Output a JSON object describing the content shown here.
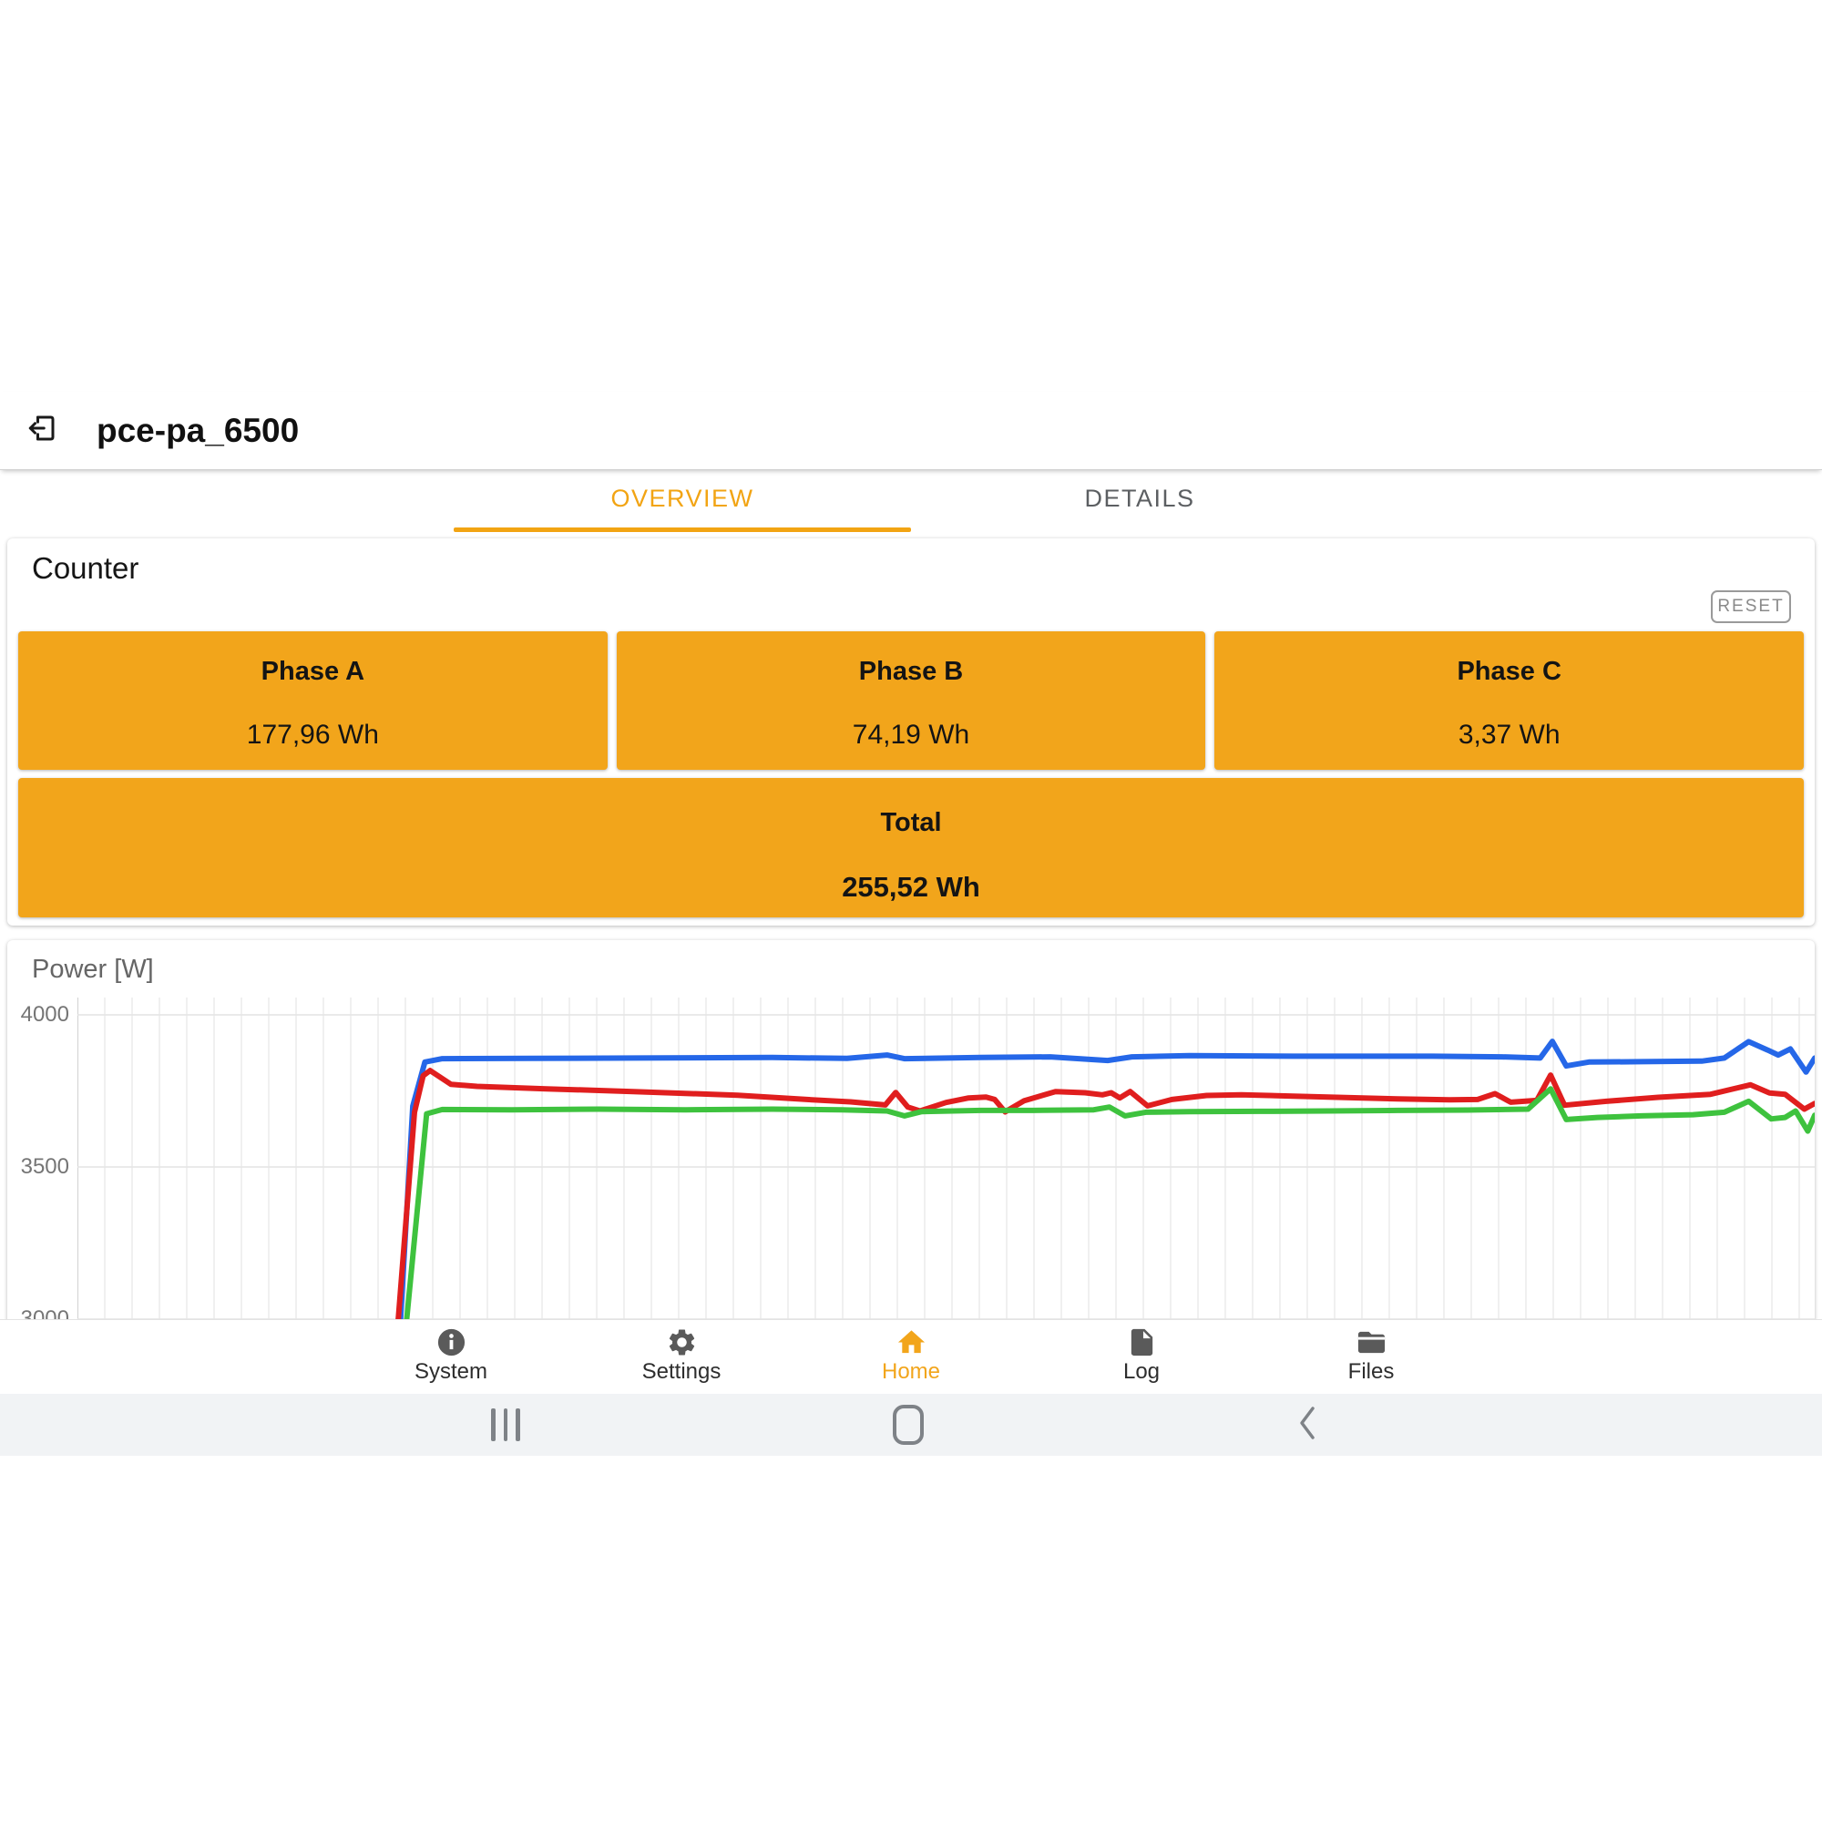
{
  "header": {
    "title": "pce-pa_6500"
  },
  "tabs": {
    "overview": "OVERVIEW",
    "details": "DETAILS"
  },
  "counter": {
    "title": "Counter",
    "reset_label": "RESET",
    "phases": [
      {
        "label": "Phase A",
        "value": "177,96 Wh"
      },
      {
        "label": "Phase B",
        "value": "74,19 Wh"
      },
      {
        "label": "Phase C",
        "value": "3,37 Wh"
      }
    ],
    "total": {
      "label": "Total",
      "value": "255,52 Wh"
    }
  },
  "chart_data": {
    "type": "line",
    "title": "Power [W]",
    "ylabel": "Power [W]",
    "xlabel": "",
    "ylim": [
      3000,
      4000
    ],
    "yticks": [
      4000,
      3500,
      3000
    ],
    "grid": true,
    "legend_position": "none",
    "x_unit": "percent-of-window",
    "series": [
      {
        "name": "blue",
        "color": "#2567e8",
        "points": [
          [
            18.5,
            2900
          ],
          [
            19.3,
            3700
          ],
          [
            20.0,
            3845
          ],
          [
            21,
            3856
          ],
          [
            26,
            3857
          ],
          [
            32,
            3858
          ],
          [
            40,
            3860
          ],
          [
            44.3,
            3857
          ],
          [
            46.6,
            3868
          ],
          [
            47.6,
            3856
          ],
          [
            52,
            3860
          ],
          [
            56,
            3862
          ],
          [
            59.3,
            3850
          ],
          [
            60.7,
            3862
          ],
          [
            64,
            3866
          ],
          [
            70,
            3864
          ],
          [
            78,
            3864
          ],
          [
            82,
            3862
          ],
          [
            84.2,
            3858
          ],
          [
            84.9,
            3913
          ],
          [
            85.7,
            3832
          ],
          [
            87,
            3845
          ],
          [
            90,
            3846
          ],
          [
            93.5,
            3848
          ],
          [
            94.8,
            3858
          ],
          [
            96.2,
            3912
          ],
          [
            97.3,
            3884
          ],
          [
            97.9,
            3868
          ],
          [
            98.6,
            3888
          ],
          [
            99.5,
            3812
          ],
          [
            100,
            3858
          ]
        ]
      },
      {
        "name": "red",
        "color": "#e01e1e",
        "points": [
          [
            18.3,
            2880
          ],
          [
            19.4,
            3680
          ],
          [
            19.9,
            3800
          ],
          [
            20.3,
            3817
          ],
          [
            21.5,
            3772
          ],
          [
            23,
            3765
          ],
          [
            27,
            3757
          ],
          [
            32,
            3748
          ],
          [
            38,
            3736
          ],
          [
            42,
            3722
          ],
          [
            44.5,
            3714
          ],
          [
            46.5,
            3704
          ],
          [
            47.1,
            3745
          ],
          [
            47.8,
            3697
          ],
          [
            48.5,
            3684
          ],
          [
            50,
            3712
          ],
          [
            51.3,
            3727
          ],
          [
            52.3,
            3730
          ],
          [
            52.8,
            3722
          ],
          [
            53.4,
            3681
          ],
          [
            54.5,
            3718
          ],
          [
            56.3,
            3748
          ],
          [
            58,
            3744
          ],
          [
            59.0,
            3737
          ],
          [
            59.5,
            3744
          ],
          [
            60.0,
            3727
          ],
          [
            60.6,
            3748
          ],
          [
            61.6,
            3701
          ],
          [
            63,
            3722
          ],
          [
            65,
            3735
          ],
          [
            67,
            3737
          ],
          [
            70,
            3733
          ],
          [
            73,
            3728
          ],
          [
            76,
            3724
          ],
          [
            79,
            3721
          ],
          [
            80.6,
            3722
          ],
          [
            81.6,
            3741
          ],
          [
            82.5,
            3713
          ],
          [
            84.0,
            3719
          ],
          [
            84.8,
            3802
          ],
          [
            85.6,
            3703
          ],
          [
            88,
            3716
          ],
          [
            91,
            3729
          ],
          [
            94,
            3739
          ],
          [
            96.3,
            3770
          ],
          [
            97.4,
            3743
          ],
          [
            98.3,
            3739
          ],
          [
            99.4,
            3690
          ],
          [
            100,
            3709
          ]
        ]
      },
      {
        "name": "green",
        "color": "#3ec23e",
        "points": [
          [
            18.7,
            2850
          ],
          [
            20.1,
            3675
          ],
          [
            21,
            3689
          ],
          [
            25,
            3688
          ],
          [
            30,
            3690
          ],
          [
            35,
            3688
          ],
          [
            40,
            3690
          ],
          [
            44,
            3688
          ],
          [
            46.6,
            3684
          ],
          [
            47.6,
            3668
          ],
          [
            48.6,
            3682
          ],
          [
            52,
            3686
          ],
          [
            55,
            3686
          ],
          [
            58.5,
            3688
          ],
          [
            59.4,
            3697
          ],
          [
            60.3,
            3668
          ],
          [
            61.5,
            3680
          ],
          [
            64,
            3682
          ],
          [
            68,
            3683
          ],
          [
            72,
            3684
          ],
          [
            76,
            3686
          ],
          [
            80,
            3687
          ],
          [
            83.5,
            3690
          ],
          [
            84.8,
            3757
          ],
          [
            85.7,
            3656
          ],
          [
            87.5,
            3663
          ],
          [
            90,
            3668
          ],
          [
            93,
            3672
          ],
          [
            94.8,
            3680
          ],
          [
            96.2,
            3716
          ],
          [
            97.5,
            3658
          ],
          [
            98.3,
            3663
          ],
          [
            98.9,
            3684
          ],
          [
            99.6,
            3618
          ],
          [
            100,
            3670
          ]
        ]
      }
    ]
  },
  "bottom_nav": {
    "active_color": "#f2a51b",
    "items": [
      {
        "label": "System",
        "icon": "info-icon",
        "active": false
      },
      {
        "label": "Settings",
        "icon": "gear-icon",
        "active": false
      },
      {
        "label": "Home",
        "icon": "home-icon",
        "active": true
      },
      {
        "label": "Log",
        "icon": "document-icon",
        "active": false
      },
      {
        "label": "Files",
        "icon": "folder-icon",
        "active": false
      }
    ]
  },
  "colors": {
    "accent_orange": "#f2a51b",
    "tab_orange": "#f2a413",
    "line_blue": "#2567e8",
    "line_red": "#e01e1e",
    "line_green": "#3ec23e",
    "sys_bar_bg": "#f1f3f5"
  }
}
